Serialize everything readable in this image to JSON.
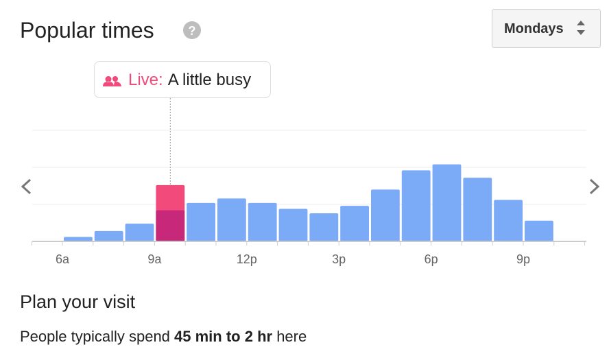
{
  "header": {
    "title": "Popular times",
    "help_icon": "?"
  },
  "dropdown": {
    "label": "Mondays"
  },
  "chart_data": {
    "type": "bar",
    "categories": [
      "6a",
      null,
      null,
      "9a",
      null,
      null,
      "12p",
      null,
      null,
      "3p",
      null,
      null,
      "6p",
      null,
      null,
      "9p"
    ],
    "values": [
      3,
      7,
      12,
      21,
      26,
      29,
      26,
      22,
      19,
      24,
      35,
      48,
      52,
      43,
      28,
      14
    ],
    "color": "#7baaf7",
    "live_values": [
      null,
      null,
      null,
      38,
      null,
      null,
      null,
      null,
      null,
      null,
      null,
      null,
      null,
      null,
      null,
      null
    ],
    "live_color": "#f24a7b",
    "overlap_color": "#c8287a",
    "live_label": "Live:",
    "live_status": "A little busy",
    "ylim": [
      0,
      75
    ],
    "yticks": [
      25,
      50,
      75
    ],
    "grid": true
  },
  "plan": {
    "title": "Plan your visit",
    "text_before": "People typically spend ",
    "text_bold": "45 min to 2 hr",
    "text_after": " here"
  }
}
